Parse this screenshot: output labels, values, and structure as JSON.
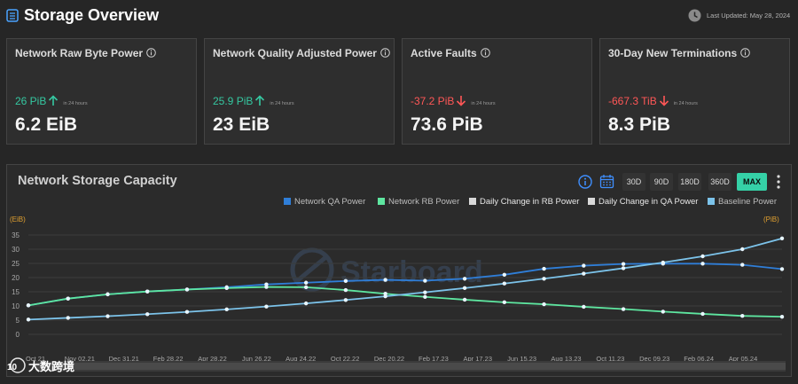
{
  "header": {
    "title": "Storage Overview",
    "last_updated": "Last Updated: May 28, 2024",
    "icons": [
      "database-icon",
      "clock-icon"
    ]
  },
  "cards": [
    {
      "title": "Network Raw Byte Power",
      "change": "26 PiB",
      "direction": "up",
      "change_suffix": "in 24 hours",
      "value": "6.2 EiB"
    },
    {
      "title": "Network Quality Adjusted Power",
      "change": "25.9 PiB",
      "direction": "up",
      "change_suffix": "in 24 hours",
      "value": "23 EiB"
    },
    {
      "title": "Active Faults",
      "change": "-37.2 PiB",
      "direction": "down",
      "change_suffix": "in 24 hours",
      "value": "73.6 PiB"
    },
    {
      "title": "30-Day New Terminations",
      "change": "-667.3 TiB",
      "direction": "down",
      "change_suffix": "in 24 hours",
      "value": "8.3 PiB"
    }
  ],
  "colors": {
    "positive": "#35c8a1",
    "negative": "#ff5757",
    "accent": "#35d1a7"
  },
  "panel": {
    "title": "Network Storage Capacity",
    "ranges": [
      "30D",
      "90D",
      "180D",
      "360D",
      "MAX"
    ],
    "active_range": "MAX",
    "tools": [
      "info-icon",
      "calendar-icon",
      "more-vertical-icon"
    ],
    "watermark": "Starboard",
    "footer_logo_text": "大数跨境"
  },
  "chart_data": {
    "type": "line",
    "left_axis_unit": "(EiB)",
    "right_axis_unit": "(PiB)",
    "ylim": [
      0,
      35
    ],
    "yticks": [
      0,
      5,
      10,
      15,
      20,
      25,
      30,
      35
    ],
    "x_labels": [
      "Oct 21",
      "Nov 02.21",
      "Dec 31.21",
      "Feb 28.22",
      "Apr 28.22",
      "Jun 26.22",
      "Aug 24.22",
      "Oct 22.22",
      "Dec 20.22",
      "Feb 17.23",
      "Apr 17.23",
      "Jun 15.23",
      "Aug 13.23",
      "Oct 11.23",
      "Dec 09.23",
      "Feb 06.24",
      "Apr 05.24"
    ],
    "legend": [
      {
        "name": "Network QA Power",
        "color": "#2f7ed8"
      },
      {
        "name": "Network RB Power",
        "color": "#5ee6a0"
      },
      {
        "name": "Daily Change in RB Power",
        "color": "#d9d9d9"
      },
      {
        "name": "Daily Change in QA Power",
        "color": "#d9d9d9"
      },
      {
        "name": "Baseline Power",
        "color": "#7cc3ea"
      }
    ],
    "series": [
      {
        "name": "Network QA Power",
        "color": "#2f7ed8",
        "values": [
          10.2,
          12.6,
          14.1,
          15.1,
          15.8,
          16.6,
          17.6,
          18.2,
          18.8,
          19.2,
          18.9,
          19.6,
          21.0,
          23.1,
          24.2,
          24.8,
          24.9,
          24.9,
          24.5,
          23.0
        ]
      },
      {
        "name": "Network RB Power",
        "color": "#5ee6a0",
        "values": [
          10.2,
          12.6,
          14.1,
          15.1,
          15.8,
          16.3,
          16.7,
          16.6,
          15.6,
          14.3,
          13.2,
          12.2,
          11.3,
          10.6,
          9.7,
          8.9,
          8.0,
          7.2,
          6.5,
          6.2
        ]
      },
      {
        "name": "Baseline Power",
        "color": "#7cc3ea",
        "values": [
          5.2,
          5.8,
          6.4,
          7.1,
          7.9,
          8.8,
          9.8,
          10.9,
          12.1,
          13.4,
          14.8,
          16.3,
          17.9,
          19.6,
          21.4,
          23.3,
          25.3,
          27.5,
          30.0,
          33.8
        ]
      }
    ]
  }
}
